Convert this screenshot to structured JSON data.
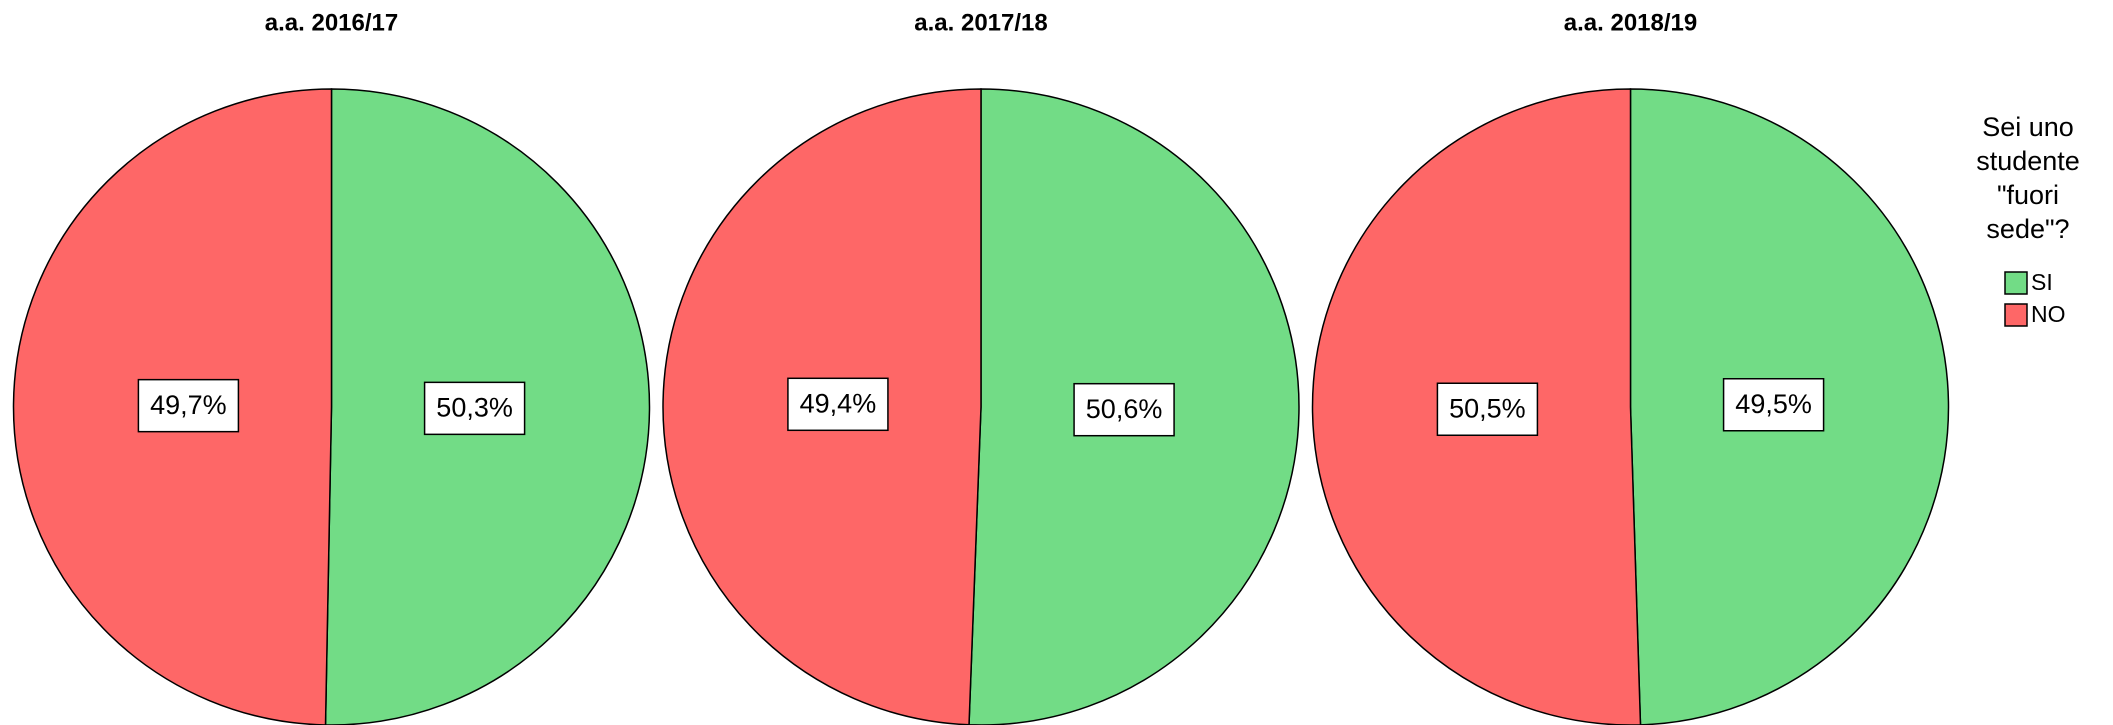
{
  "chart_data": [
    {
      "type": "pie",
      "title": "a.a. 2016/17",
      "categories": [
        "SI",
        "NO"
      ],
      "values": [
        50.3,
        49.7
      ],
      "value_labels": [
        "50,3%",
        "49,7%"
      ],
      "colors": [
        "#72dc86",
        "#fe6767"
      ],
      "legend_title": "Sei uno studente \"fuori sede\"?"
    },
    {
      "type": "pie",
      "title": "a.a. 2017/18",
      "categories": [
        "SI",
        "NO"
      ],
      "values": [
        50.6,
        49.4
      ],
      "value_labels": [
        "50,6%",
        "49,4%"
      ],
      "colors": [
        "#72dc86",
        "#fe6767"
      ]
    },
    {
      "type": "pie",
      "title": "a.a. 2018/19",
      "categories": [
        "SI",
        "NO"
      ],
      "values": [
        49.5,
        50.5
      ],
      "value_labels": [
        "49,5%",
        "50,5%"
      ],
      "colors": [
        "#72dc86",
        "#fe6767"
      ]
    }
  ]
}
